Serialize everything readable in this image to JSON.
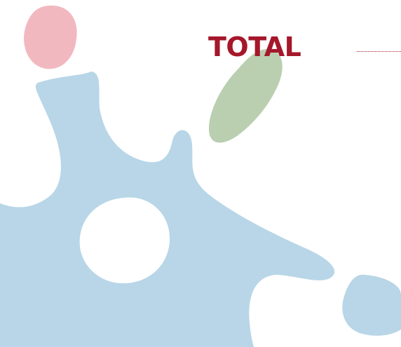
{
  "heading": {
    "text": "TOTAL"
  },
  "colors": {
    "heading": "#a5172a",
    "leader_line": "#a5172a",
    "blue_shape": "#b8d6e7",
    "pink_blob": "#f2b8c0",
    "green_blob": "#b9cfb0"
  },
  "decorations": {
    "shapes": [
      "pink-blob",
      "green-blob",
      "blue-star-shape",
      "blue-ring-hole",
      "blue-small-blob"
    ]
  }
}
